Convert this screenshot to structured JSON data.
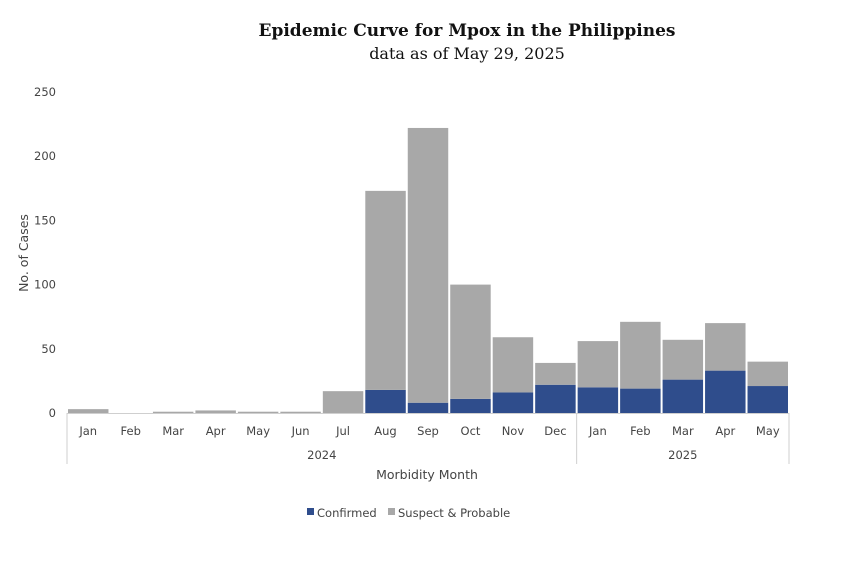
{
  "chart_data": {
    "type": "bar",
    "stacked": true,
    "title": "Epidemic Curve for Mpox in the Philippines",
    "subtitle": "data as of May 29, 2025",
    "xlabel": "Morbidity Month",
    "ylabel": "No. of Cases",
    "ylim": [
      0,
      250
    ],
    "yticks": [
      0,
      50,
      100,
      150,
      200,
      250
    ],
    "grid": false,
    "legend_position": "bottom",
    "categories": [
      "Jan",
      "Feb",
      "Mar",
      "Apr",
      "May",
      "Jun",
      "Jul",
      "Aug",
      "Sep",
      "Oct",
      "Nov",
      "Dec",
      "Jan",
      "Feb",
      "Mar",
      "Apr",
      "May"
    ],
    "groups": [
      {
        "label": "2024",
        "count": 12
      },
      {
        "label": "2025",
        "count": 5
      }
    ],
    "series": [
      {
        "name": "Confirmed",
        "color": "#2f4d8c",
        "values": [
          0,
          0,
          0,
          0,
          0,
          0,
          0,
          18,
          8,
          11,
          16,
          22,
          20,
          19,
          26,
          33,
          21
        ]
      },
      {
        "name": "Suspect & Probable",
        "color": "#a8a8a8",
        "values": [
          3,
          0,
          1,
          2,
          1,
          1,
          17,
          155,
          214,
          89,
          43,
          17,
          36,
          52,
          31,
          37,
          19
        ]
      }
    ]
  }
}
